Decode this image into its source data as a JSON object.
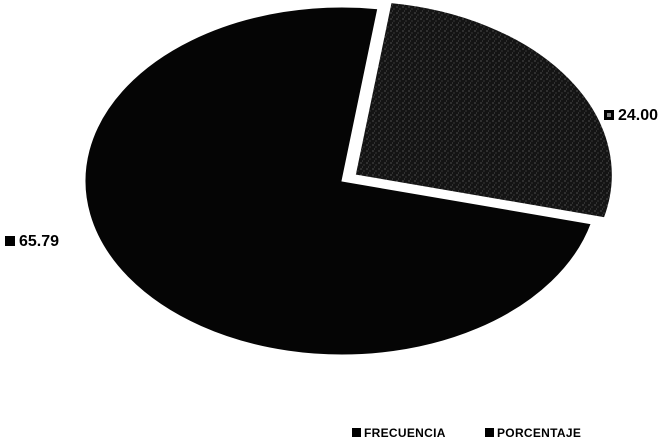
{
  "chart_data": {
    "type": "pie",
    "title": "",
    "slices": [
      {
        "label_text": "65.79",
        "value": 65.79,
        "color": "#050505"
      },
      {
        "label_text": "24.00",
        "value": 24.0,
        "color": "#161616",
        "exploded": true
      }
    ],
    "legend": {
      "position": "bottom-right",
      "entries": [
        {
          "name": "FRECUENCIA",
          "color": "#000000"
        },
        {
          "name": "PORCENTAJE",
          "color": "#000000"
        }
      ]
    }
  }
}
